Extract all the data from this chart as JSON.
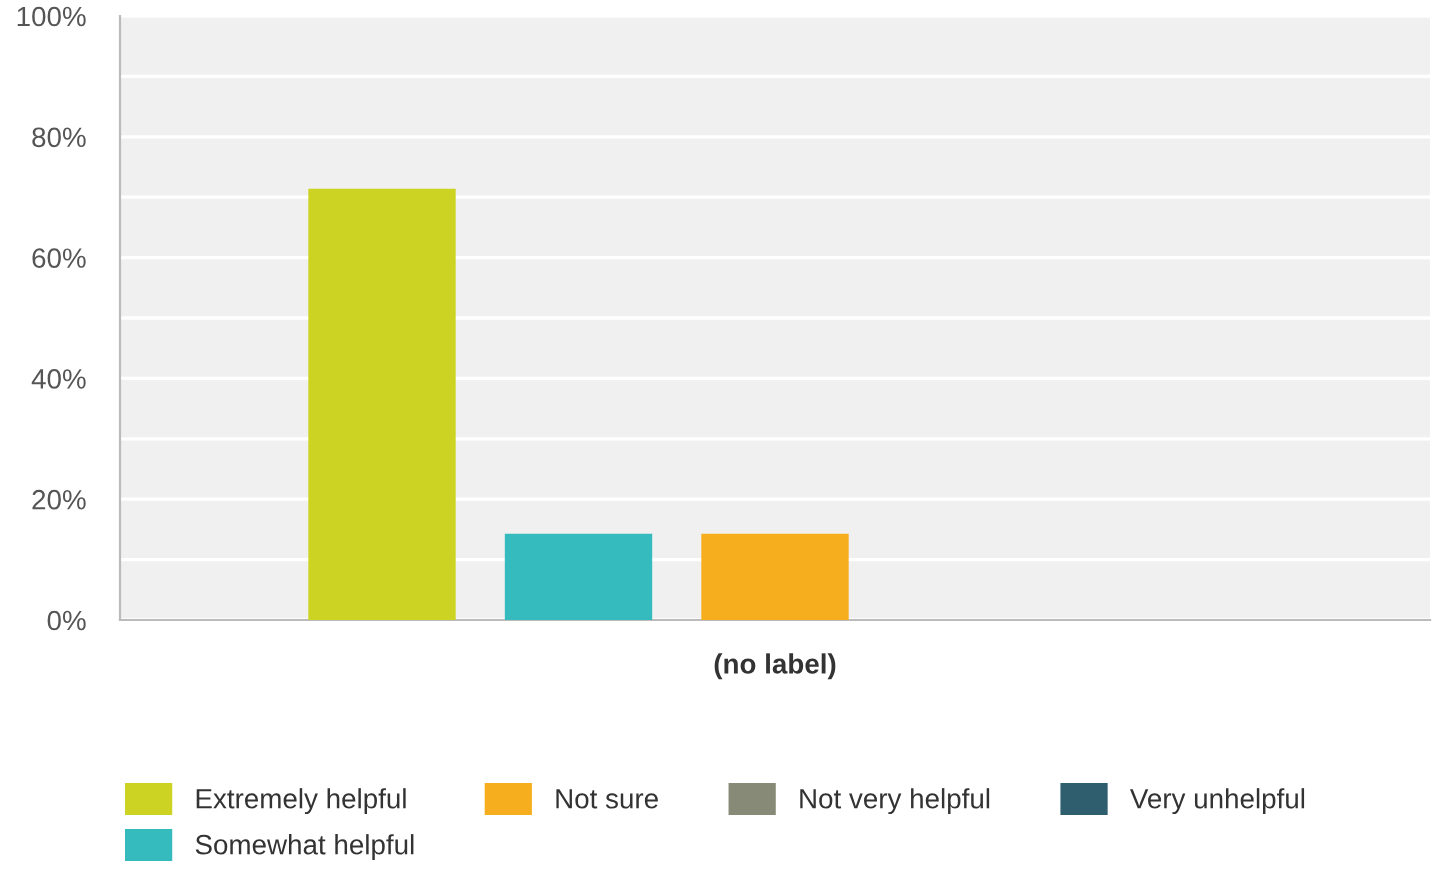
{
  "chart_data": {
    "type": "bar",
    "categories": [
      "(no label)"
    ],
    "series": [
      {
        "name": "Extremely helpful",
        "color": "#ccd323",
        "values": [
          71.4
        ]
      },
      {
        "name": "Somewhat helpful",
        "color": "#35bbbd",
        "values": [
          14.3
        ]
      },
      {
        "name": "Not sure",
        "color": "#f7ae1e",
        "values": [
          14.3
        ]
      },
      {
        "name": "Not very helpful",
        "color": "#878a76",
        "values": [
          0
        ]
      },
      {
        "name": "Very unhelpful",
        "color": "#2f5f6f",
        "values": [
          0
        ]
      }
    ],
    "ylim": [
      0,
      100
    ],
    "yticks": [
      {
        "value": 0,
        "label": "0%"
      },
      {
        "value": 10,
        "label": null
      },
      {
        "value": 20,
        "label": "20%"
      },
      {
        "value": 30,
        "label": null
      },
      {
        "value": 40,
        "label": "40%"
      },
      {
        "value": 50,
        "label": null
      },
      {
        "value": 60,
        "label": "60%"
      },
      {
        "value": 70,
        "label": null
      },
      {
        "value": 80,
        "label": "80%"
      },
      {
        "value": 90,
        "label": null
      },
      {
        "value": 100,
        "label": "100%"
      }
    ],
    "grid": "y",
    "legend": "bottom"
  }
}
